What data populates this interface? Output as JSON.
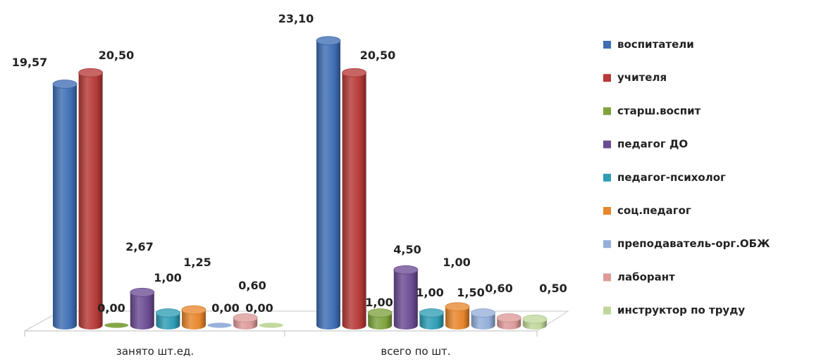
{
  "chart_data": {
    "type": "bar",
    "categories": [
      "занято шт.ед.",
      "всего по шт."
    ],
    "series": [
      {
        "name": "воспитатели",
        "values": [
          19.57,
          23.1
        ],
        "color": "#3F6EB5"
      },
      {
        "name": "учителя",
        "values": [
          20.5,
          20.5
        ],
        "color": "#B63A37"
      },
      {
        "name": "старш.воспит",
        "values": [
          0.0,
          1.0
        ],
        "color": "#7FA23E"
      },
      {
        "name": "педагог ДО",
        "values": [
          2.67,
          4.5
        ],
        "color": "#6B4C93"
      },
      {
        "name": "педагог-психолог",
        "values": [
          1.0,
          1.0
        ],
        "color": "#2E9DB5"
      },
      {
        "name": "соц.педагог",
        "values": [
          1.25,
          1.5
        ],
        "color": "#E8862C"
      },
      {
        "name": "преподаватель-орг.ОБЖ",
        "values": [
          0.0,
          1.0
        ],
        "color": "#94AEDA"
      },
      {
        "name": "лаборант",
        "values": [
          0.6,
          0.6
        ],
        "color": "#DE9A9A"
      },
      {
        "name": "инструктор  по труду",
        "values": [
          0.0,
          0.5
        ],
        "color": "#BFD79A"
      }
    ],
    "data_labels": [
      [
        "19,57",
        "20,50",
        "0,00",
        "2,67",
        "1,00",
        "1,25",
        "0,00",
        "0,60",
        "0,00"
      ],
      [
        "23,10",
        "20,50",
        "1,00",
        "4,50",
        "1,00",
        "1,50",
        "1,00",
        "0,60",
        "0,50"
      ]
    ],
    "title": "",
    "xlabel": "",
    "ylabel": "",
    "ylim": [
      0,
      25
    ],
    "legend_position": "right",
    "grid": false,
    "style": "3d-cylinder"
  }
}
